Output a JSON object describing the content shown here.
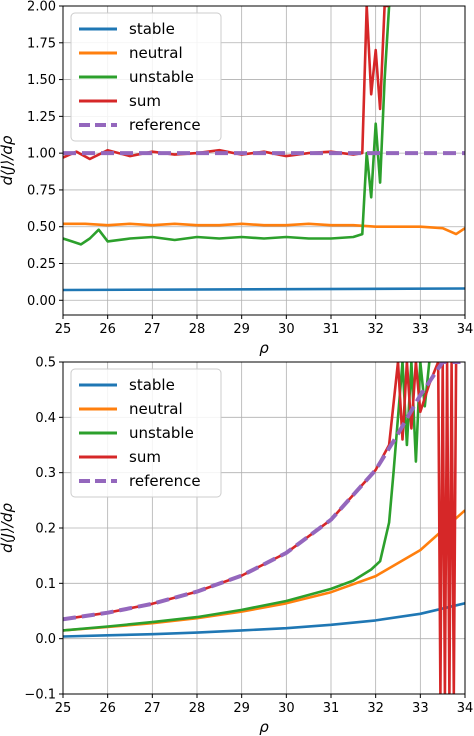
{
  "chart_data": [
    {
      "type": "line",
      "xlabel": "ρ",
      "ylabel": "d⟨J⟩/dρ",
      "xlim": [
        25,
        34
      ],
      "ylim": [
        -0.1,
        2.0
      ],
      "grid": true,
      "legend_position": "top-left",
      "xticks": [
        25,
        26,
        27,
        28,
        29,
        30,
        31,
        32,
        33,
        34
      ],
      "yticks": [
        0.0,
        0.25,
        0.5,
        0.75,
        1.0,
        1.25,
        1.5,
        1.75,
        2.0
      ],
      "ytick_labels": [
        "0.00",
        "0.25",
        "0.50",
        "0.75",
        "1.00",
        "1.25",
        "1.50",
        "1.75",
        "2.00"
      ],
      "series": [
        {
          "name": "stable",
          "color": "#1f77b4",
          "style": "solid",
          "x": [
            25,
            34
          ],
          "y": [
            0.07,
            0.08
          ]
        },
        {
          "name": "neutral",
          "color": "#ff7f0e",
          "style": "solid",
          "x": [
            25,
            25.5,
            26,
            26.5,
            27,
            27.5,
            28,
            28.5,
            29,
            29.5,
            30,
            30.5,
            31,
            31.5,
            32,
            32.5,
            33,
            33.5,
            33.8,
            34
          ],
          "y": [
            0.52,
            0.52,
            0.51,
            0.52,
            0.51,
            0.52,
            0.51,
            0.51,
            0.52,
            0.51,
            0.51,
            0.52,
            0.51,
            0.51,
            0.5,
            0.5,
            0.5,
            0.49,
            0.45,
            0.49
          ]
        },
        {
          "name": "unstable",
          "color": "#2ca02c",
          "style": "solid",
          "x": [
            25,
            25.2,
            25.4,
            25.6,
            25.8,
            26,
            26.5,
            27,
            27.5,
            28,
            28.5,
            29,
            29.5,
            30,
            30.5,
            31,
            31.5,
            31.7,
            31.8,
            31.9,
            32.0,
            32.1,
            32.2,
            32.3
          ],
          "y": [
            0.42,
            0.4,
            0.38,
            0.42,
            0.48,
            0.4,
            0.42,
            0.43,
            0.41,
            0.43,
            0.42,
            0.43,
            0.42,
            0.43,
            0.42,
            0.42,
            0.43,
            0.45,
            1.0,
            0.7,
            1.2,
            0.8,
            1.5,
            2.0
          ]
        },
        {
          "name": "sum",
          "color": "#d62728",
          "style": "solid",
          "x": [
            25,
            25.3,
            25.6,
            26,
            26.5,
            27,
            27.5,
            28,
            28.5,
            29,
            29.5,
            30,
            30.5,
            31,
            31.5,
            31.7,
            31.8,
            31.9,
            32.0,
            32.1,
            32.2,
            32.3
          ],
          "y": [
            0.97,
            1.01,
            0.96,
            1.02,
            0.98,
            1.01,
            0.99,
            1.0,
            1.02,
            0.99,
            1.01,
            0.98,
            1.0,
            1.01,
            0.99,
            1.0,
            2.0,
            1.4,
            1.7,
            1.3,
            2.0,
            2.0
          ]
        },
        {
          "name": "reference",
          "color": "#9467bd",
          "style": "dashed",
          "x": [
            25,
            34
          ],
          "y": [
            1.0,
            1.0
          ]
        }
      ]
    },
    {
      "type": "line",
      "xlabel": "ρ",
      "ylabel": "d⟨J⟩/dρ",
      "xlim": [
        25,
        34
      ],
      "ylim": [
        -0.1,
        0.5
      ],
      "grid": true,
      "legend_position": "top-left",
      "xticks": [
        25,
        26,
        27,
        28,
        29,
        30,
        31,
        32,
        33,
        34
      ],
      "yticks": [
        -0.1,
        0.0,
        0.1,
        0.2,
        0.3,
        0.4,
        0.5
      ],
      "ytick_labels": [
        "−0.1",
        "0.0",
        "0.1",
        "0.2",
        "0.3",
        "0.4",
        "0.5"
      ],
      "series": [
        {
          "name": "stable",
          "color": "#1f77b4",
          "style": "solid",
          "x": [
            25,
            26,
            27,
            28,
            29,
            30,
            31,
            32,
            33,
            34
          ],
          "y": [
            0.004,
            0.006,
            0.008,
            0.011,
            0.015,
            0.019,
            0.025,
            0.033,
            0.045,
            0.064
          ]
        },
        {
          "name": "neutral",
          "color": "#ff7f0e",
          "style": "solid",
          "x": [
            25,
            26,
            27,
            28,
            29,
            30,
            31,
            32,
            33,
            34
          ],
          "y": [
            0.015,
            0.021,
            0.028,
            0.037,
            0.049,
            0.064,
            0.084,
            0.113,
            0.16,
            0.232
          ]
        },
        {
          "name": "unstable",
          "color": "#2ca02c",
          "style": "solid",
          "x": [
            25,
            26,
            27,
            28,
            29,
            30,
            31,
            31.5,
            31.9,
            32.1,
            32.3,
            32.4,
            32.5,
            32.6,
            32.7,
            32.8,
            32.9,
            33.0,
            33.1,
            33.2
          ],
          "y": [
            0.015,
            0.022,
            0.03,
            0.039,
            0.052,
            0.068,
            0.09,
            0.105,
            0.125,
            0.14,
            0.21,
            0.3,
            0.4,
            0.5,
            0.35,
            0.5,
            0.32,
            0.5,
            0.42,
            0.5
          ]
        },
        {
          "name": "sum",
          "color": "#d62728",
          "style": "solid",
          "x": [
            25,
            26,
            27,
            28,
            29,
            30,
            31,
            32,
            32.3,
            32.5,
            32.6,
            32.7,
            32.8,
            32.9,
            33.0,
            33.2,
            33.4,
            33.45,
            33.5,
            33.55,
            33.6,
            33.65,
            33.7,
            33.75,
            33.8
          ],
          "y": [
            0.035,
            0.047,
            0.063,
            0.085,
            0.114,
            0.155,
            0.215,
            0.305,
            0.35,
            0.5,
            0.36,
            0.5,
            0.38,
            0.5,
            0.41,
            0.46,
            0.5,
            -0.1,
            0.5,
            -0.1,
            0.5,
            -0.1,
            0.5,
            -0.1,
            0.5
          ]
        },
        {
          "name": "reference",
          "color": "#9467bd",
          "style": "dashed",
          "x": [
            25,
            26,
            27,
            28,
            29,
            30,
            31,
            32,
            32.5,
            33,
            33.5,
            33.9
          ],
          "y": [
            0.035,
            0.047,
            0.063,
            0.085,
            0.114,
            0.155,
            0.215,
            0.305,
            0.37,
            0.44,
            0.5,
            0.5
          ]
        }
      ]
    }
  ]
}
